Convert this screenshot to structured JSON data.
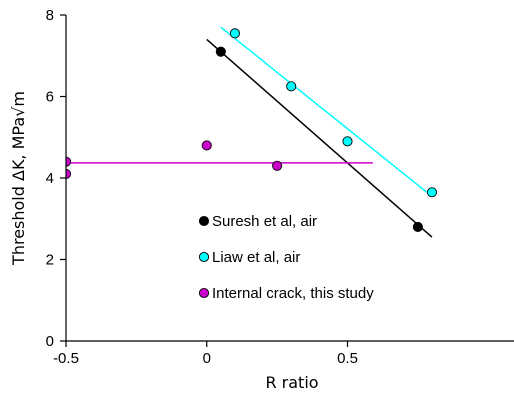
{
  "chart_data": {
    "type": "scatter",
    "title": "",
    "xlabel": "R ratio",
    "ylabel": "Threshold ΔK, MPa√m",
    "xlim": [
      -0.5,
      0.8
    ],
    "ylim": [
      0,
      8
    ],
    "x_ticks": [
      -0.5,
      0,
      0.5
    ],
    "x_tick_labels": [
      "-0.5",
      "0",
      "0.5"
    ],
    "y_ticks": [
      0,
      2,
      4,
      6,
      8
    ],
    "y_tick_labels": [
      "0",
      "2",
      "4",
      "6",
      "8"
    ],
    "grid": false,
    "legend_position": "center",
    "series": [
      {
        "name": "Suresh et al, air",
        "marker_color": "#000000",
        "line_color": "#000000",
        "points": [
          {
            "x": 0.05,
            "y": 7.1
          },
          {
            "x": 0.75,
            "y": 2.8
          }
        ],
        "trendline": {
          "x": [
            0.0,
            0.8
          ],
          "y": [
            7.4,
            2.55
          ]
        }
      },
      {
        "name": "Liaw et al, air",
        "marker_color": "#00ffff",
        "line_color": "#00ffff",
        "points": [
          {
            "x": 0.1,
            "y": 7.55
          },
          {
            "x": 0.3,
            "y": 6.25
          },
          {
            "x": 0.5,
            "y": 4.9
          },
          {
            "x": 0.8,
            "y": 3.65
          }
        ],
        "trendline": {
          "x": [
            0.05,
            0.8
          ],
          "y": [
            7.7,
            3.55
          ]
        }
      },
      {
        "name": "Internal crack, this study",
        "marker_color": "#cc00cc",
        "line_color": "#cc00cc",
        "points": [
          {
            "x": -0.5,
            "y": 4.4
          },
          {
            "x": -0.5,
            "y": 4.1
          },
          {
            "x": 0.0,
            "y": 4.8
          },
          {
            "x": 0.25,
            "y": 4.3
          }
        ],
        "trendline": {
          "x": [
            -0.5,
            0.59
          ],
          "y": [
            4.37,
            4.37
          ]
        }
      }
    ]
  }
}
